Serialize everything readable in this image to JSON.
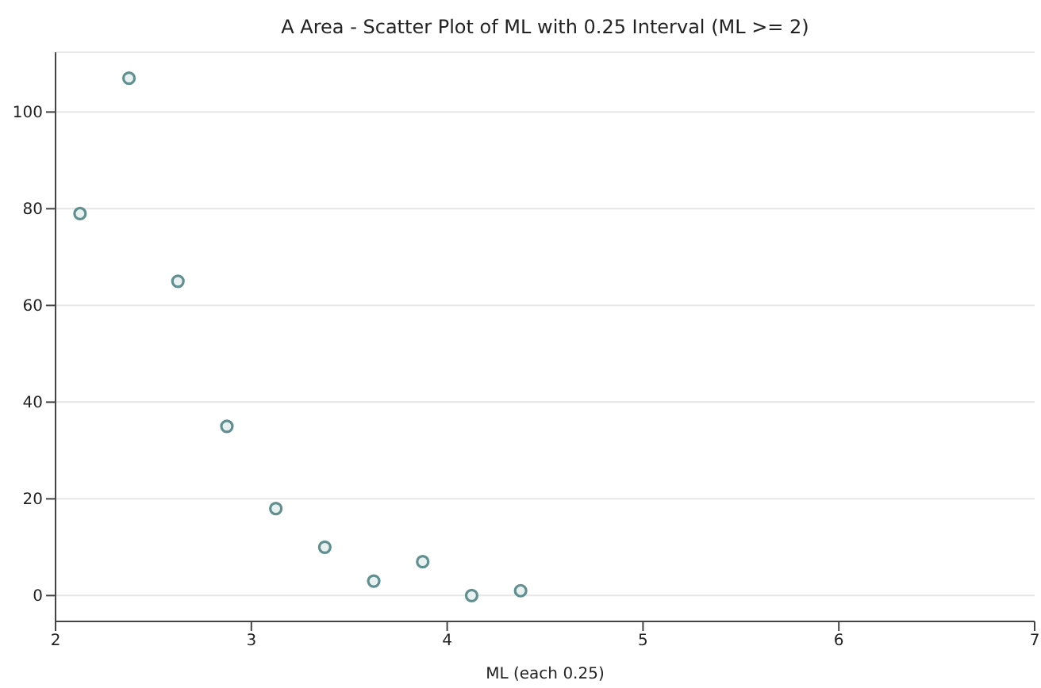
{
  "chart_data": {
    "type": "scatter",
    "title": "A Area - Scatter Plot of ML with 0.25 Interval (ML >= 2)",
    "xlabel": "ML (each 0.25)",
    "x": [
      2.125,
      2.375,
      2.625,
      2.875,
      3.125,
      3.375,
      3.625,
      3.875,
      4.125,
      4.375
    ],
    "values": [
      79,
      107,
      65,
      35,
      18,
      10,
      3,
      7,
      0,
      1
    ],
    "color": "#5f8f8f",
    "marker": "circle",
    "xlim": [
      2,
      7
    ],
    "xticks": [
      2,
      3,
      4,
      5,
      6,
      7
    ],
    "ylim": [
      -5.35,
      112.35
    ],
    "yticks": [
      0,
      20,
      40,
      60,
      80,
      100
    ],
    "grid": "y"
  }
}
